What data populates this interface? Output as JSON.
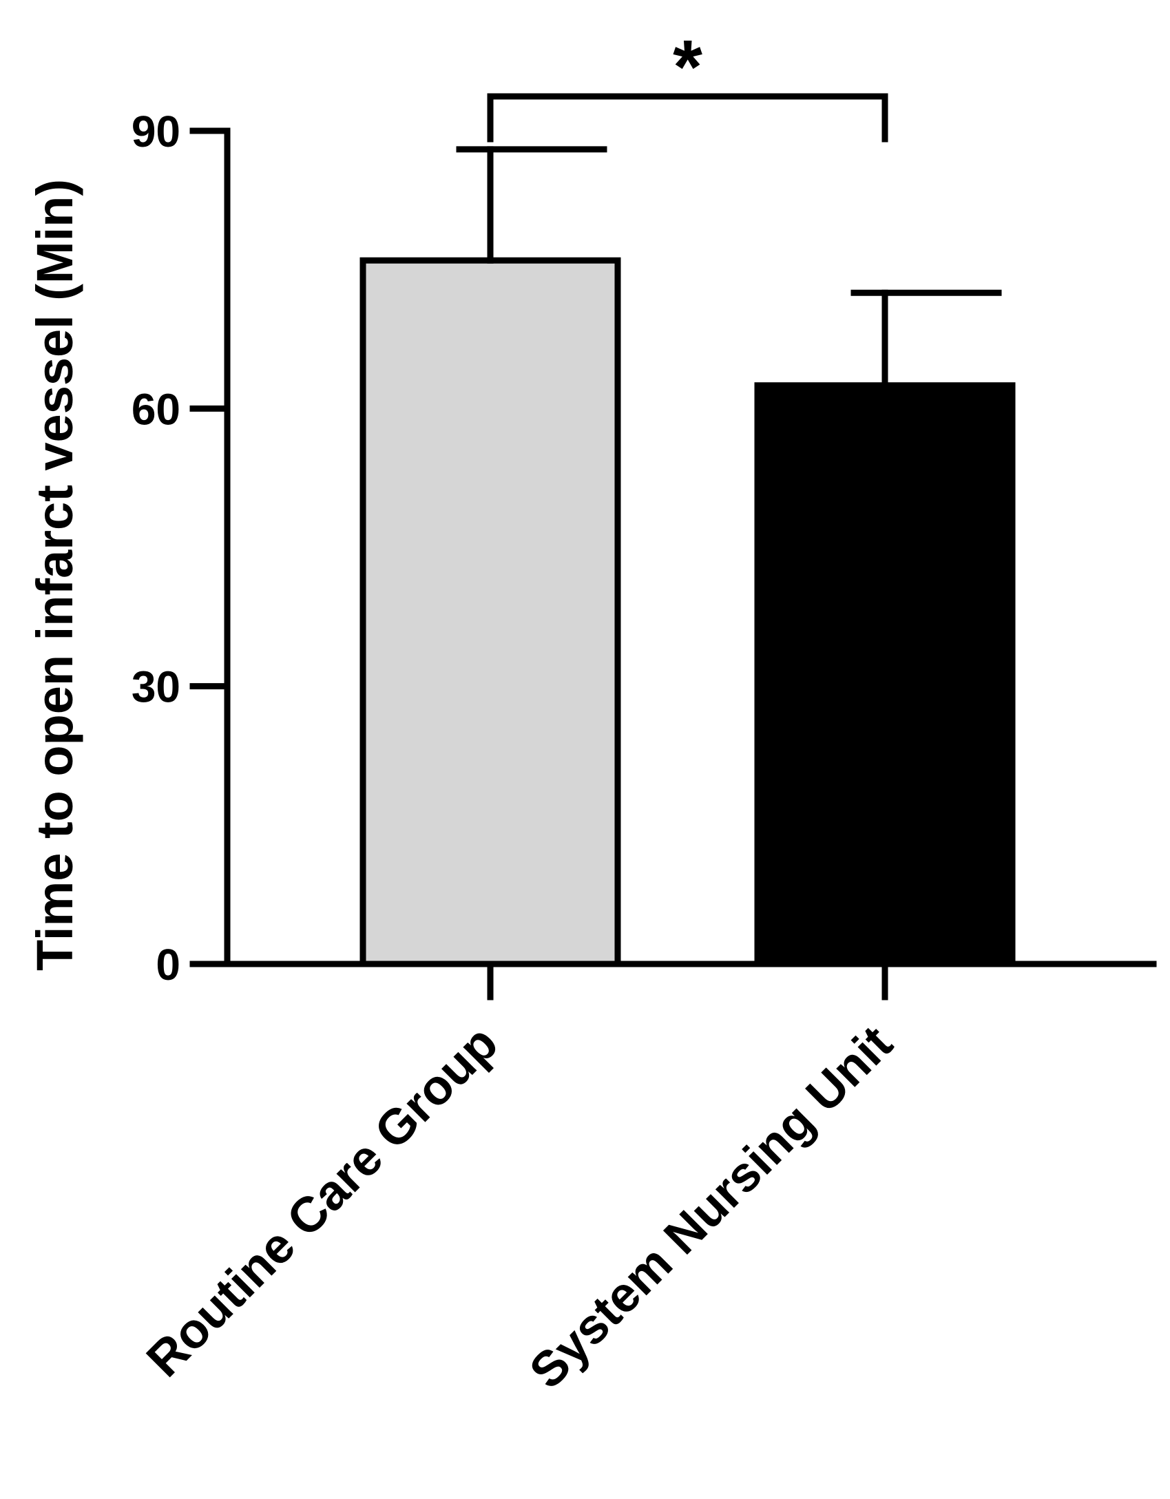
{
  "chart_data": {
    "type": "bar",
    "categories": [
      "Routine Care Group",
      "System Nursing Unit"
    ],
    "values": [
      76,
      62.5
    ],
    "error_upper": [
      88,
      72.5
    ],
    "colors": [
      "#d6d6d6",
      "#000000"
    ],
    "ylabel": "Time to open infarct vessel (Min)",
    "xlabel": "",
    "ylim": [
      0,
      90
    ],
    "yticks": [
      0,
      30,
      60,
      90
    ],
    "ytick_labels": [
      "0",
      "30",
      "60",
      "90"
    ],
    "significance": {
      "between": [
        0,
        1
      ],
      "label": "*"
    }
  }
}
